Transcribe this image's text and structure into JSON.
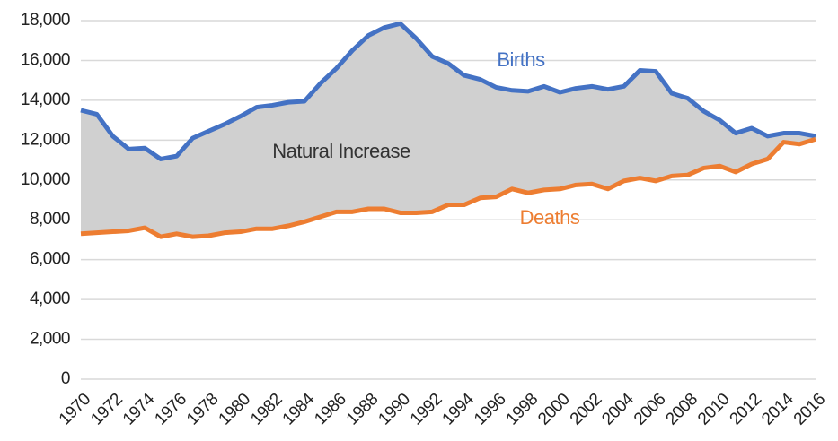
{
  "chart_data": {
    "type": "line",
    "x": [
      1970,
      1971,
      1972,
      1973,
      1974,
      1975,
      1976,
      1977,
      1978,
      1979,
      1980,
      1981,
      1982,
      1983,
      1984,
      1985,
      1986,
      1987,
      1988,
      1989,
      1990,
      1991,
      1992,
      1993,
      1994,
      1995,
      1996,
      1997,
      1998,
      1999,
      2000,
      2001,
      2002,
      2003,
      2004,
      2005,
      2006,
      2007,
      2008,
      2009,
      2010,
      2011,
      2012,
      2013,
      2014,
      2015,
      2016
    ],
    "series": [
      {
        "name": "Births",
        "color": "#4472c4",
        "values": [
          13500,
          13300,
          12200,
          11550,
          11600,
          11050,
          11200,
          12100,
          12450,
          12800,
          13200,
          13650,
          13750,
          13900,
          13950,
          14850,
          15600,
          16500,
          17250,
          17650,
          17850,
          17100,
          16200,
          15850,
          15250,
          15050,
          14650,
          14500,
          14450,
          14700,
          14400,
          14600,
          14700,
          14550,
          14700,
          15500,
          15450,
          14350,
          14100,
          13450,
          13000,
          12350,
          12600,
          12200,
          12350,
          12350,
          12200
        ]
      },
      {
        "name": "Deaths",
        "color": "#ed7d31",
        "values": [
          7300,
          7350,
          7400,
          7450,
          7600,
          7150,
          7300,
          7150,
          7200,
          7350,
          7400,
          7550,
          7550,
          7700,
          7900,
          8150,
          8400,
          8400,
          8550,
          8550,
          8350,
          8350,
          8400,
          8750,
          8750,
          9100,
          9150,
          9550,
          9350,
          9500,
          9550,
          9750,
          9800,
          9550,
          9950,
          10100,
          9950,
          10200,
          10250,
          10600,
          10700,
          10400,
          10800,
          11050,
          11900,
          11800,
          12050
        ]
      }
    ],
    "area_label": "Natural Increase",
    "area_color": "#d0d0d0",
    "xlim": [
      1970,
      2016
    ],
    "xticks": [
      1970,
      1972,
      1974,
      1976,
      1978,
      1980,
      1982,
      1984,
      1986,
      1988,
      1990,
      1992,
      1994,
      1996,
      1998,
      2000,
      2002,
      2004,
      2006,
      2008,
      2010,
      2012,
      2014,
      2016
    ],
    "ylim": [
      0,
      18000
    ],
    "yticks": [
      0,
      {
        "value": 2000,
        "label": "2,000"
      },
      {
        "value": 4000,
        "label": "4,000"
      },
      {
        "value": 6000,
        "label": "6,000"
      },
      {
        "value": 8000,
        "label": "8,000"
      },
      {
        "value": 10000,
        "label": "10,000"
      },
      {
        "value": 12000,
        "label": "12,000"
      },
      {
        "value": 14000,
        "label": "14,000"
      },
      {
        "value": 16000,
        "label": "16,000"
      },
      {
        "value": 18000,
        "label": "18,000"
      }
    ],
    "grid": true
  }
}
